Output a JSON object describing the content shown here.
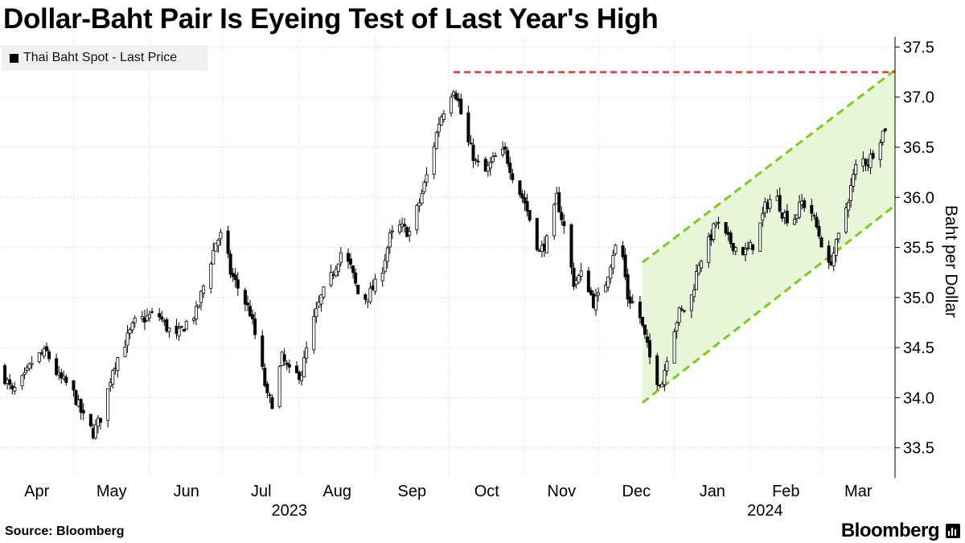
{
  "header": {
    "title": "Dollar-Baht Pair Is Eyeing Test of Last Year's High"
  },
  "legend": {
    "label": "Thai Baht Spot - Last Price"
  },
  "footer": {
    "source": "Source: Bloomberg",
    "brand": "Bloomberg"
  },
  "colors": {
    "candle": "#000000",
    "resistance": "#e8303a",
    "channel": "#7ccc1f",
    "channel_fill": "#e7f6d6",
    "grid": "#cccccc"
  },
  "chart_data": {
    "type": "candlestick",
    "title": "Dollar-Baht Pair Is Eyeing Test of Last Year's High",
    "ylabel": "Baht per Dollar",
    "ylim": [
      33.2,
      37.6
    ],
    "y_ticks": [
      "37.5",
      "37.0",
      "36.5",
      "36.0",
      "35.5",
      "35.0",
      "34.5",
      "34.0",
      "33.5"
    ],
    "x_range": [
      "2023-04-01",
      "2024-03-31"
    ],
    "x_ticks": [
      {
        "label": "Apr",
        "date": "2023-04-01"
      },
      {
        "label": "May",
        "date": "2023-05-01"
      },
      {
        "label": "Jun",
        "date": "2023-06-01"
      },
      {
        "label": "Jul",
        "date": "2023-07-01"
      },
      {
        "label": "Aug",
        "date": "2023-08-01"
      },
      {
        "label": "Sep",
        "date": "2023-09-01"
      },
      {
        "label": "Oct",
        "date": "2023-10-01"
      },
      {
        "label": "Nov",
        "date": "2023-11-01"
      },
      {
        "label": "Dec",
        "date": "2023-12-01"
      },
      {
        "label": "Jan",
        "date": "2024-01-01"
      },
      {
        "label": "Feb",
        "date": "2024-02-01"
      },
      {
        "label": "Mar",
        "date": "2024-03-01"
      }
    ],
    "year_labels": [
      {
        "label": "2023",
        "date": "2023-07-28"
      },
      {
        "label": "2024",
        "date": "2024-02-07"
      }
    ],
    "series": [
      {
        "name": "Thai Baht Spot - Last Price",
        "close_path": [
          [
            "2023-04-01",
            34.3
          ],
          [
            "2023-04-06",
            34.05
          ],
          [
            "2023-04-11",
            34.2
          ],
          [
            "2023-04-15",
            34.4
          ],
          [
            "2023-04-20",
            34.45
          ],
          [
            "2023-04-25",
            34.2
          ],
          [
            "2023-04-30",
            34.1
          ],
          [
            "2023-05-05",
            33.8
          ],
          [
            "2023-05-09",
            33.65
          ],
          [
            "2023-05-13",
            33.85
          ],
          [
            "2023-05-17",
            34.3
          ],
          [
            "2023-05-21",
            34.5
          ],
          [
            "2023-05-26",
            34.75
          ],
          [
            "2023-05-31",
            34.8
          ],
          [
            "2023-06-04",
            34.85
          ],
          [
            "2023-06-08",
            34.7
          ],
          [
            "2023-06-12",
            34.6
          ],
          [
            "2023-06-16",
            34.75
          ],
          [
            "2023-06-20",
            34.85
          ],
          [
            "2023-06-24",
            35.2
          ],
          [
            "2023-06-28",
            35.55
          ],
          [
            "2023-07-01",
            35.65
          ],
          [
            "2023-07-04",
            35.25
          ],
          [
            "2023-07-08",
            35.05
          ],
          [
            "2023-07-12",
            34.85
          ],
          [
            "2023-07-16",
            34.4
          ],
          [
            "2023-07-19",
            34.0
          ],
          [
            "2023-07-21",
            33.95
          ],
          [
            "2023-07-25",
            34.4
          ],
          [
            "2023-07-29",
            34.2
          ],
          [
            "2023-08-02",
            34.25
          ],
          [
            "2023-08-06",
            34.7
          ],
          [
            "2023-08-10",
            35.0
          ],
          [
            "2023-08-14",
            35.2
          ],
          [
            "2023-08-18",
            35.45
          ],
          [
            "2023-08-22",
            35.3
          ],
          [
            "2023-08-26",
            34.95
          ],
          [
            "2023-08-30",
            35.05
          ],
          [
            "2023-09-03",
            35.2
          ],
          [
            "2023-09-07",
            35.6
          ],
          [
            "2023-09-11",
            35.7
          ],
          [
            "2023-09-15",
            35.65
          ],
          [
            "2023-09-19",
            35.95
          ],
          [
            "2023-09-23",
            36.3
          ],
          [
            "2023-09-27",
            36.75
          ],
          [
            "2023-10-01",
            37.0
          ],
          [
            "2023-10-03",
            37.1
          ],
          [
            "2023-10-05",
            36.95
          ],
          [
            "2023-10-08",
            36.6
          ],
          [
            "2023-10-12",
            36.35
          ],
          [
            "2023-10-16",
            36.25
          ],
          [
            "2023-10-20",
            36.4
          ],
          [
            "2023-10-24",
            36.45
          ],
          [
            "2023-10-28",
            36.15
          ],
          [
            "2023-11-01",
            35.95
          ],
          [
            "2023-11-04",
            35.7
          ],
          [
            "2023-11-07",
            35.45
          ],
          [
            "2023-11-11",
            35.6
          ],
          [
            "2023-11-14",
            36.0
          ],
          [
            "2023-11-17",
            35.7
          ],
          [
            "2023-11-21",
            35.15
          ],
          [
            "2023-11-25",
            35.25
          ],
          [
            "2023-11-29",
            34.95
          ],
          [
            "2023-12-03",
            35.05
          ],
          [
            "2023-12-07",
            35.45
          ],
          [
            "2023-12-10",
            35.6
          ],
          [
            "2023-12-13",
            35.0
          ],
          [
            "2023-12-17",
            34.9
          ],
          [
            "2023-12-20",
            34.6
          ],
          [
            "2023-12-24",
            34.2
          ],
          [
            "2023-12-27",
            34.15
          ],
          [
            "2023-12-30",
            34.55
          ],
          [
            "2024-01-03",
            34.85
          ],
          [
            "2024-01-07",
            34.9
          ],
          [
            "2024-01-11",
            35.35
          ],
          [
            "2024-01-15",
            35.55
          ],
          [
            "2024-01-18",
            35.75
          ],
          [
            "2024-01-22",
            35.6
          ],
          [
            "2024-01-26",
            35.5
          ],
          [
            "2024-01-30",
            35.45
          ],
          [
            "2024-02-03",
            35.55
          ],
          [
            "2024-02-07",
            35.9
          ],
          [
            "2024-02-11",
            36.05
          ],
          [
            "2024-02-14",
            35.85
          ],
          [
            "2024-02-18",
            35.75
          ],
          [
            "2024-02-22",
            35.95
          ],
          [
            "2024-02-26",
            35.85
          ],
          [
            "2024-03-01",
            35.55
          ],
          [
            "2024-03-04",
            35.3
          ],
          [
            "2024-03-08",
            35.6
          ],
          [
            "2024-03-12",
            36.0
          ],
          [
            "2024-03-16",
            36.4
          ],
          [
            "2024-03-20",
            36.35
          ],
          [
            "2024-03-24",
            36.55
          ],
          [
            "2024-03-27",
            36.7
          ]
        ]
      }
    ],
    "annotations": [
      {
        "type": "horizontal-line",
        "style": "dashed",
        "color": "#e8303a",
        "y": 37.25,
        "x_from": "2023-10-03",
        "x_to": "2024-03-31"
      },
      {
        "type": "channel",
        "style": "dashed",
        "color": "#7ccc1f",
        "fill": "#e7f6d6",
        "upper": [
          [
            "2023-12-19",
            35.35
          ],
          [
            "2024-03-31",
            37.27
          ]
        ],
        "lower": [
          [
            "2023-12-19",
            33.95
          ],
          [
            "2024-03-31",
            35.92
          ]
        ]
      }
    ],
    "grid": true,
    "legend_position": "top-left"
  }
}
